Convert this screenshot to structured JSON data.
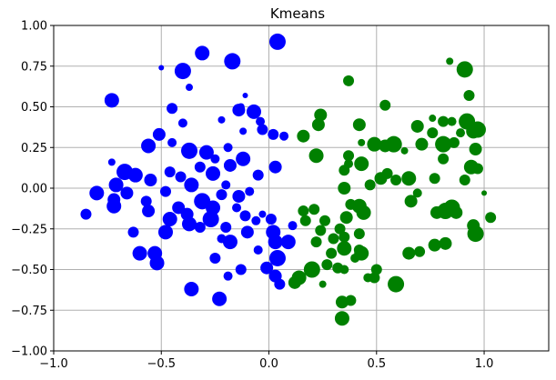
{
  "chart_data": {
    "type": "scatter",
    "title": "Kmeans",
    "xlabel": "",
    "ylabel": "",
    "xlim": [
      -1.0,
      1.3
    ],
    "ylim": [
      -1.0,
      1.0
    ],
    "grid": true,
    "x_ticks": [
      "−1.0",
      "−0.5",
      "0.0",
      "0.5",
      "1.0"
    ],
    "x_tick_values": [
      -1.0,
      -0.5,
      0.0,
      0.5,
      1.0
    ],
    "y_ticks": [
      "1.00",
      "0.75",
      "0.50",
      "0.25",
      "0.00",
      "−0.25",
      "−0.50",
      "−0.75",
      "−1.00"
    ],
    "y_tick_values": [
      1.0,
      0.75,
      0.5,
      0.25,
      0.0,
      -0.25,
      -0.5,
      -0.75,
      -1.0
    ],
    "series": [
      {
        "color": "#0000ff",
        "points": [
          [
            0.04,
            0.9,
            9
          ],
          [
            -0.31,
            0.83,
            8
          ],
          [
            -0.17,
            0.78,
            9
          ],
          [
            -0.4,
            0.72,
            9
          ],
          [
            -0.5,
            0.74,
            3
          ],
          [
            -0.37,
            0.62,
            4
          ],
          [
            -0.73,
            0.54,
            8
          ],
          [
            -0.45,
            0.49,
            6
          ],
          [
            -0.07,
            0.47,
            8
          ],
          [
            -0.14,
            0.48,
            7
          ],
          [
            -0.22,
            0.42,
            4
          ],
          [
            -0.11,
            0.57,
            3
          ],
          [
            -0.13,
            0.5,
            4
          ],
          [
            -0.04,
            0.41,
            5
          ],
          [
            -0.03,
            0.36,
            6
          ],
          [
            -0.4,
            0.4,
            5
          ],
          [
            -0.51,
            0.33,
            7
          ],
          [
            -0.56,
            0.26,
            8
          ],
          [
            -0.45,
            0.28,
            5
          ],
          [
            -0.37,
            0.23,
            9
          ],
          [
            -0.29,
            0.22,
            8
          ],
          [
            -0.19,
            0.25,
            5
          ],
          [
            -0.12,
            0.18,
            8
          ],
          [
            -0.25,
            0.18,
            5
          ],
          [
            -0.05,
            0.08,
            6
          ],
          [
            0.03,
            0.13,
            7
          ],
          [
            0.02,
            0.33,
            6
          ],
          [
            0.07,
            0.32,
            5
          ],
          [
            -0.67,
            0.1,
            9
          ],
          [
            -0.73,
            0.16,
            4
          ],
          [
            -0.62,
            0.08,
            8
          ],
          [
            -0.55,
            0.05,
            7
          ],
          [
            -0.46,
            0.1,
            6
          ],
          [
            -0.41,
            0.07,
            6
          ],
          [
            -0.32,
            0.13,
            6
          ],
          [
            -0.36,
            0.02,
            8
          ],
          [
            -0.26,
            0.09,
            8
          ],
          [
            -0.2,
            0.02,
            5
          ],
          [
            -0.71,
            0.02,
            8
          ],
          [
            -0.66,
            -0.03,
            7
          ],
          [
            -0.8,
            -0.03,
            8
          ],
          [
            -0.72,
            -0.07,
            7
          ],
          [
            -0.72,
            -0.11,
            8
          ],
          [
            -0.85,
            -0.16,
            6
          ],
          [
            -0.57,
            -0.08,
            6
          ],
          [
            -0.56,
            -0.14,
            7
          ],
          [
            -0.48,
            -0.02,
            6
          ],
          [
            -0.42,
            -0.12,
            7
          ],
          [
            -0.46,
            -0.19,
            8
          ],
          [
            -0.38,
            -0.16,
            7
          ],
          [
            -0.31,
            -0.08,
            9
          ],
          [
            -0.26,
            -0.12,
            8
          ],
          [
            -0.22,
            -0.04,
            6
          ],
          [
            -0.27,
            -0.19,
            9
          ],
          [
            -0.14,
            -0.05,
            7
          ],
          [
            -0.15,
            -0.12,
            5
          ],
          [
            -0.09,
            -0.02,
            5
          ],
          [
            -0.32,
            -0.24,
            6
          ],
          [
            -0.37,
            -0.22,
            8
          ],
          [
            -0.2,
            -0.24,
            6
          ],
          [
            -0.18,
            -0.33,
            8
          ],
          [
            -0.11,
            -0.17,
            6
          ],
          [
            -0.1,
            -0.27,
            7
          ],
          [
            -0.06,
            -0.2,
            5
          ],
          [
            -0.03,
            -0.16,
            4
          ],
          [
            0.01,
            -0.19,
            6
          ],
          [
            0.02,
            -0.27,
            8
          ],
          [
            0.03,
            -0.33,
            8
          ],
          [
            0.11,
            -0.23,
            5
          ],
          [
            0.09,
            -0.33,
            8
          ],
          [
            -0.05,
            -0.38,
            5
          ],
          [
            -0.22,
            -0.31,
            5
          ],
          [
            -0.25,
            -0.43,
            6
          ],
          [
            -0.48,
            -0.27,
            8
          ],
          [
            -0.63,
            -0.27,
            6
          ],
          [
            -0.6,
            -0.4,
            8
          ],
          [
            -0.53,
            -0.4,
            8
          ],
          [
            -0.52,
            -0.46,
            8
          ],
          [
            -0.13,
            -0.5,
            6
          ],
          [
            -0.19,
            -0.54,
            5
          ],
          [
            0.04,
            -0.43,
            9
          ],
          [
            -0.01,
            -0.49,
            7
          ],
          [
            0.03,
            -0.54,
            7
          ],
          [
            0.05,
            -0.59,
            6
          ],
          [
            -0.36,
            -0.62,
            8
          ],
          [
            -0.23,
            -0.68,
            8
          ],
          [
            -0.12,
            0.35,
            4
          ],
          [
            -0.18,
            0.14,
            7
          ]
        ]
      },
      {
        "color": "#008000",
        "points": [
          [
            0.84,
            0.78,
            4
          ],
          [
            0.91,
            0.73,
            9
          ],
          [
            0.37,
            0.66,
            6
          ],
          [
            0.93,
            0.57,
            6
          ],
          [
            0.54,
            0.51,
            6
          ],
          [
            0.24,
            0.45,
            7
          ],
          [
            0.23,
            0.39,
            7
          ],
          [
            0.42,
            0.39,
            7
          ],
          [
            0.76,
            0.43,
            4
          ],
          [
            0.81,
            0.41,
            6
          ],
          [
            0.92,
            0.41,
            9
          ],
          [
            0.69,
            0.38,
            7
          ],
          [
            0.76,
            0.34,
            6
          ],
          [
            0.95,
            0.35,
            8
          ],
          [
            0.97,
            0.36,
            9
          ],
          [
            0.89,
            0.34,
            5
          ],
          [
            0.16,
            0.32,
            7
          ],
          [
            0.43,
            0.28,
            4
          ],
          [
            0.49,
            0.27,
            8
          ],
          [
            0.54,
            0.26,
            7
          ],
          [
            0.58,
            0.27,
            9
          ],
          [
            0.71,
            0.27,
            7
          ],
          [
            0.81,
            0.27,
            9
          ],
          [
            0.86,
            0.28,
            6
          ],
          [
            0.96,
            0.24,
            7
          ],
          [
            0.63,
            0.23,
            4
          ],
          [
            0.22,
            0.2,
            8
          ],
          [
            0.37,
            0.2,
            6
          ],
          [
            0.43,
            0.15,
            8
          ],
          [
            0.81,
            0.18,
            6
          ],
          [
            0.37,
            0.15,
            5
          ],
          [
            0.35,
            0.11,
            6
          ],
          [
            0.55,
            0.09,
            6
          ],
          [
            0.94,
            0.13,
            8
          ],
          [
            0.97,
            0.12,
            6
          ],
          [
            0.59,
            0.05,
            6
          ],
          [
            0.65,
            0.06,
            8
          ],
          [
            0.52,
            0.06,
            7
          ],
          [
            0.47,
            0.02,
            6
          ],
          [
            0.69,
            -0.03,
            5
          ],
          [
            0.77,
            0.06,
            6
          ],
          [
            0.91,
            0.05,
            6
          ],
          [
            0.66,
            -0.08,
            7
          ],
          [
            0.35,
            0.0,
            7
          ],
          [
            0.38,
            -0.1,
            6
          ],
          [
            0.42,
            -0.11,
            8
          ],
          [
            0.44,
            -0.15,
            8
          ],
          [
            0.21,
            -0.13,
            6
          ],
          [
            0.36,
            -0.18,
            7
          ],
          [
            0.33,
            -0.25,
            6
          ],
          [
            0.26,
            -0.2,
            6
          ],
          [
            0.16,
            -0.14,
            6
          ],
          [
            0.17,
            -0.2,
            6
          ],
          [
            0.24,
            -0.26,
            6
          ],
          [
            0.35,
            -0.3,
            6
          ],
          [
            0.42,
            -0.28,
            6
          ],
          [
            0.82,
            -0.14,
            9
          ],
          [
            0.85,
            -0.12,
            9
          ],
          [
            0.87,
            -0.15,
            7
          ],
          [
            0.78,
            -0.15,
            7
          ],
          [
            0.95,
            -0.23,
            7
          ],
          [
            1.03,
            -0.18,
            6
          ],
          [
            0.96,
            -0.28,
            9
          ],
          [
            0.22,
            -0.33,
            6
          ],
          [
            0.35,
            -0.37,
            8
          ],
          [
            0.42,
            -0.38,
            6
          ],
          [
            0.43,
            -0.4,
            8
          ],
          [
            0.65,
            -0.4,
            7
          ],
          [
            0.7,
            -0.39,
            6
          ],
          [
            0.77,
            -0.35,
            7
          ],
          [
            0.82,
            -0.34,
            7
          ],
          [
            0.27,
            -0.47,
            6
          ],
          [
            0.32,
            -0.49,
            6
          ],
          [
            0.35,
            -0.5,
            5
          ],
          [
            0.5,
            -0.5,
            6
          ],
          [
            0.49,
            -0.55,
            6
          ],
          [
            0.46,
            -0.55,
            5
          ],
          [
            0.2,
            -0.5,
            9
          ],
          [
            0.14,
            -0.55,
            8
          ],
          [
            0.12,
            -0.58,
            7
          ],
          [
            0.59,
            -0.59,
            9
          ],
          [
            0.25,
            -0.59,
            4
          ],
          [
            0.34,
            -0.7,
            7
          ],
          [
            0.38,
            -0.69,
            6
          ],
          [
            0.34,
            -0.8,
            8
          ],
          [
            1.0,
            -0.03,
            3
          ],
          [
            0.85,
            0.41,
            5
          ],
          [
            0.29,
            -0.4,
            6
          ],
          [
            0.4,
            -0.43,
            5
          ],
          [
            0.3,
            -0.31,
            6
          ]
        ]
      }
    ]
  }
}
